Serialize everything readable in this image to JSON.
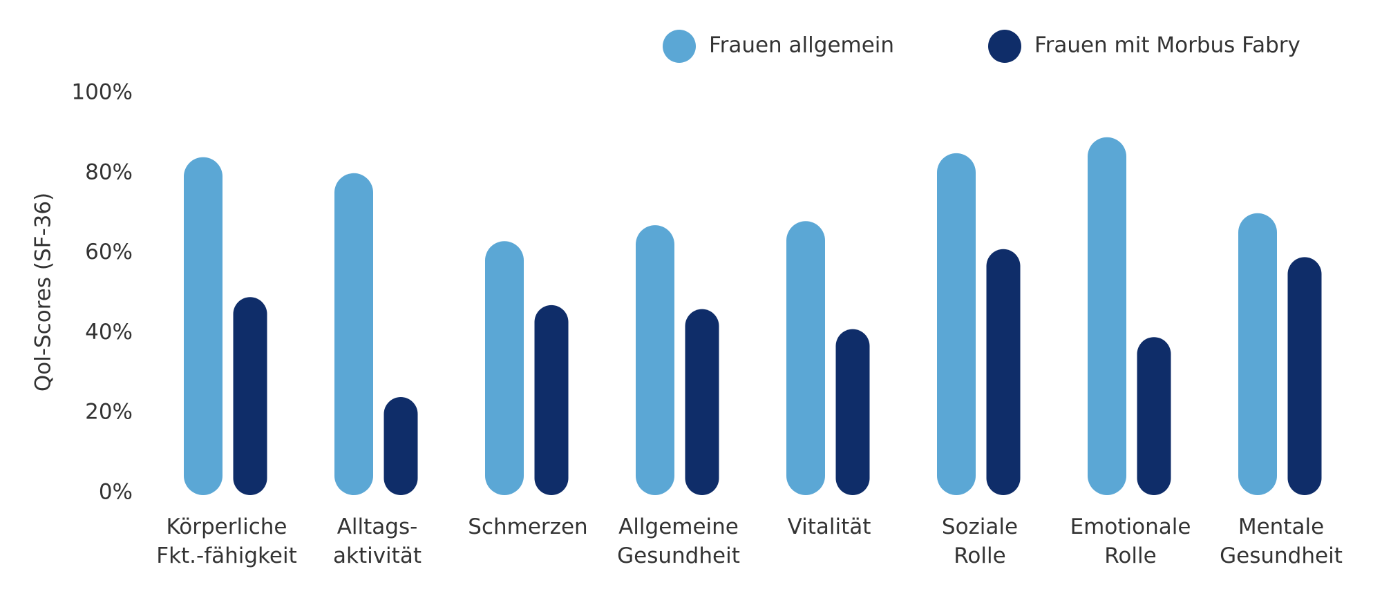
{
  "chart_data": {
    "type": "bar",
    "y_label": "Qol-Scores (SF-36)",
    "categories": [
      "Körperliche\nFkt.-fähigkeit",
      "Alltags-\naktivität",
      "Schmerzen",
      "Allgemeine\nGesundheit",
      "Vitalität",
      "Soziale\nRolle",
      "Emotionale\nRolle",
      "Mentale\nGesundheit"
    ],
    "series": [
      {
        "name": "Frauen allgemein",
        "color": "#5ba7d5",
        "values": [
          84,
          80,
          63,
          67,
          68,
          85,
          89,
          70
        ]
      },
      {
        "name": "Frauen mit Morbus Fabry",
        "color": "#0f2d69",
        "values": [
          49,
          24,
          47,
          46,
          41,
          61,
          39,
          59
        ]
      }
    ],
    "ylim": [
      0,
      100
    ],
    "yticks": [
      {
        "value": 0,
        "label": "0%"
      },
      {
        "value": 20,
        "label": "20%"
      },
      {
        "value": 40,
        "label": "40%"
      },
      {
        "value": 60,
        "label": "60%"
      },
      {
        "value": 80,
        "label": "80%"
      },
      {
        "value": 100,
        "label": "100%"
      }
    ]
  }
}
